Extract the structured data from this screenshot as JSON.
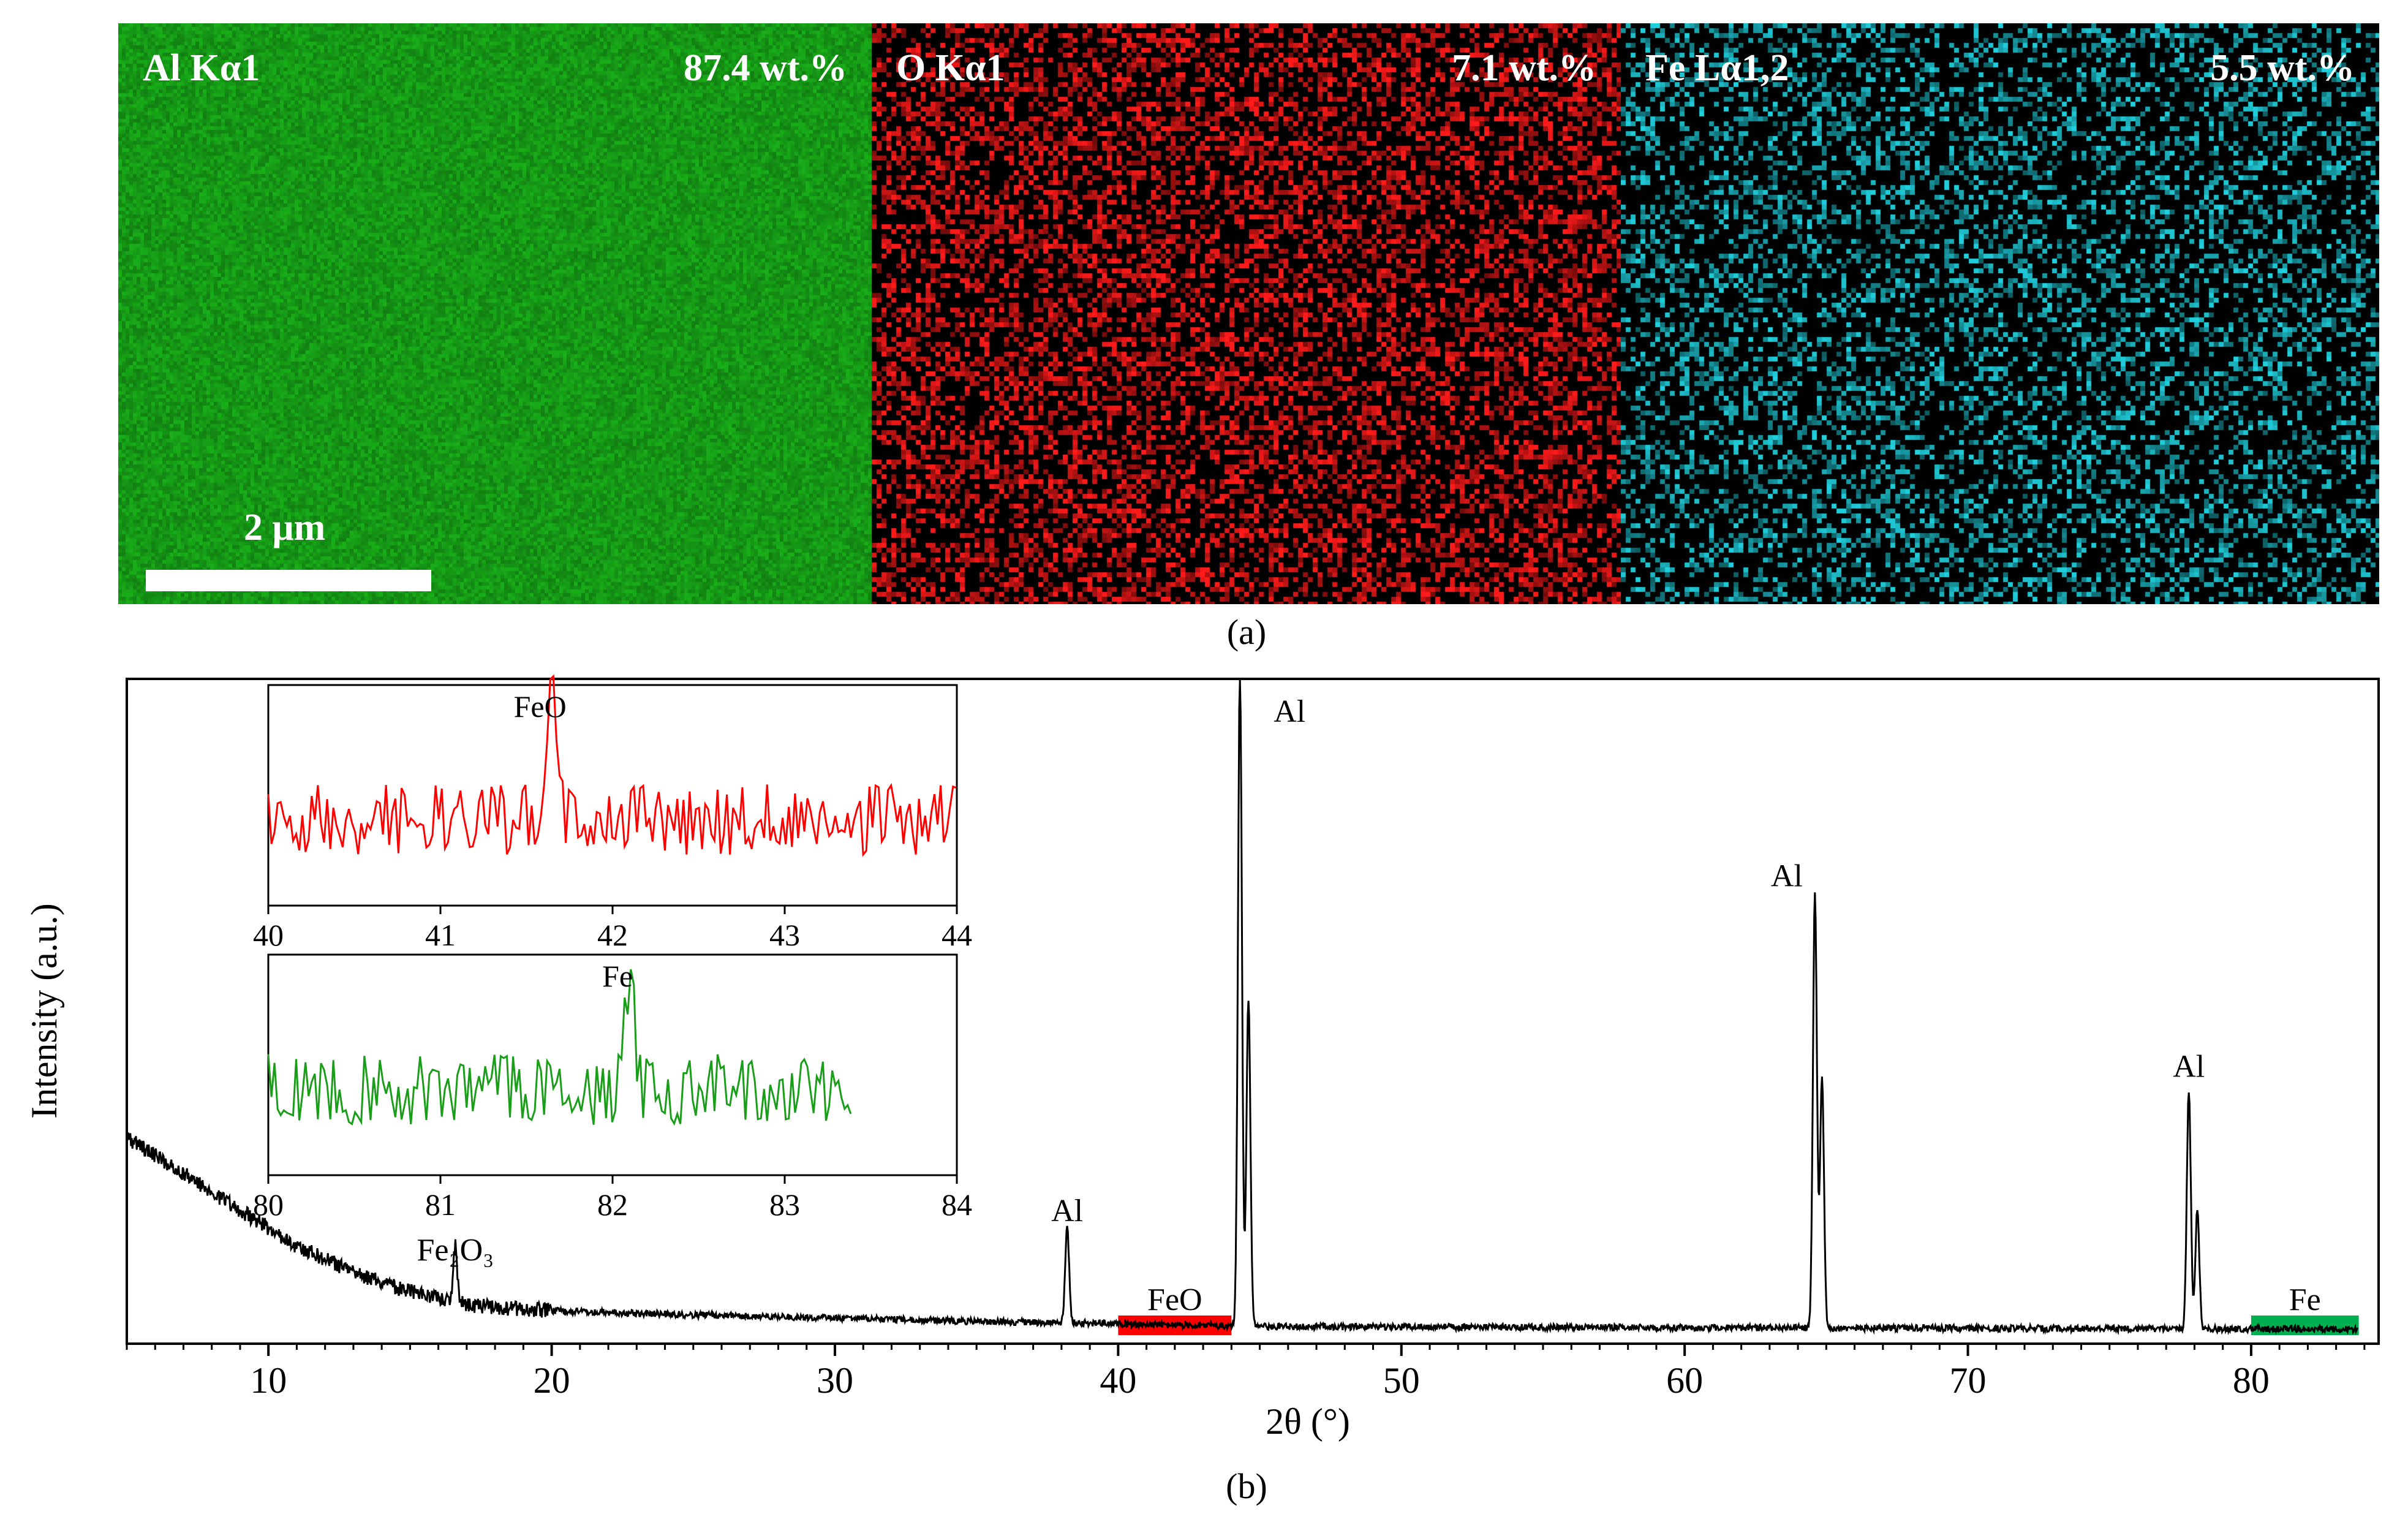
{
  "panel_a": {
    "caption": "(a)",
    "scale_bar_label": "2 μm",
    "maps": [
      {
        "element": "Al Kα1",
        "wt": "87.4 wt.%",
        "color": "#1aa31a"
      },
      {
        "element": "O Kα1",
        "wt": "7.1 wt.%",
        "color": "#ff1a1a"
      },
      {
        "element": "Fe Lα1,2",
        "wt": "5.5 wt.%",
        "color": "#1fc7d4"
      }
    ]
  },
  "panel_b": {
    "caption": "(b)"
  },
  "chart_data": [
    {
      "type": "line",
      "name": "main-xrd",
      "xlabel": "2θ (°)",
      "ylabel": "Intensity (a.u.)",
      "xlim": [
        5,
        84.5
      ],
      "xticks": [
        10,
        20,
        30,
        40,
        50,
        60,
        70,
        80
      ],
      "line_color": "#000000",
      "background": [
        {
          "x": 5,
          "y": 0.3
        },
        {
          "x": 7,
          "y": 0.245
        },
        {
          "x": 9,
          "y": 0.19
        },
        {
          "x": 11,
          "y": 0.135
        },
        {
          "x": 13,
          "y": 0.095
        },
        {
          "x": 15,
          "y": 0.065
        },
        {
          "x": 17,
          "y": 0.045
        },
        {
          "x": 20,
          "y": 0.036
        },
        {
          "x": 25,
          "y": 0.03
        },
        {
          "x": 30,
          "y": 0.025
        },
        {
          "x": 35,
          "y": 0.02
        },
        {
          "x": 38,
          "y": 0.018
        },
        {
          "x": 45,
          "y": 0.012
        },
        {
          "x": 55,
          "y": 0.011
        },
        {
          "x": 65,
          "y": 0.01
        },
        {
          "x": 75,
          "y": 0.009
        },
        {
          "x": 84,
          "y": 0.008
        }
      ],
      "peaks": [
        {
          "x": 16.6,
          "y": 0.085,
          "label": "Fe₂O₃"
        },
        {
          "x": 38.2,
          "y": 0.145,
          "label": "Al"
        },
        {
          "x": 44.3,
          "y": 1.0,
          "label": "Al"
        },
        {
          "x": 44.6,
          "y": 0.5,
          "label": ""
        },
        {
          "x": 64.6,
          "y": 0.665,
          "label": "Al"
        },
        {
          "x": 64.85,
          "y": 0.38,
          "label": ""
        },
        {
          "x": 77.8,
          "y": 0.365,
          "label": "Al"
        },
        {
          "x": 78.1,
          "y": 0.18,
          "label": ""
        }
      ],
      "highlights": [
        {
          "from": 40,
          "to": 44,
          "label": "FeO",
          "color": "#ff0000"
        },
        {
          "from": 80,
          "to": 83.8,
          "label": "Fe",
          "color": "#00b050"
        }
      ]
    },
    {
      "type": "line",
      "name": "inset-feo",
      "xlim": [
        40,
        44
      ],
      "xticks": [
        40,
        41,
        42,
        43,
        44
      ],
      "line_color": "#ff0000",
      "peak": {
        "x": 41.65,
        "label": "FeO"
      }
    },
    {
      "type": "line",
      "name": "inset-fe",
      "xlim": [
        80,
        84
      ],
      "xticks": [
        80,
        81,
        82,
        83,
        84
      ],
      "data_end_x": 83.4,
      "line_color": "#1a9e1a",
      "peak": {
        "x": 82.1,
        "label": "Fe"
      }
    }
  ]
}
